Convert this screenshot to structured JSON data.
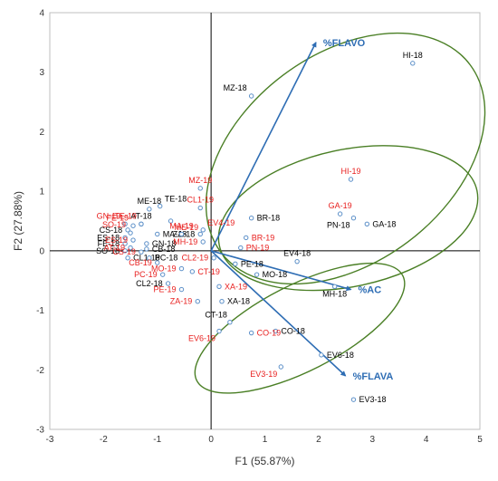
{
  "chart_data": {
    "type": "scatter",
    "xlabel": "F1 (55.87%)",
    "ylabel": "F2 (27.88%)",
    "xlim": [
      -3,
      5
    ],
    "ylim": [
      -3,
      4
    ],
    "xticks": [
      -3,
      -2,
      -1,
      0,
      1,
      2,
      3,
      4,
      5
    ],
    "yticks": [
      -3,
      -2,
      -1,
      0,
      1,
      2,
      3,
      4
    ],
    "grid": false,
    "colors": {
      "year18": "#000000",
      "year19": "#e8201f",
      "marker": "#5b8fc8",
      "vector": "#2e6db4",
      "ellipse": "#4a7f25",
      "frame": "#bfbfbf"
    },
    "points": [
      {
        "label": "HI-18",
        "x": 3.75,
        "y": 3.15,
        "group": "18",
        "labelPos": "above"
      },
      {
        "label": "MZ-18",
        "x": 0.75,
        "y": 2.6,
        "group": "18",
        "labelPos": "left-above"
      },
      {
        "label": "TE-18",
        "x": -0.95,
        "y": 0.75,
        "group": "18",
        "labelPos": "right-above"
      },
      {
        "label": "ME-18",
        "x": -1.15,
        "y": 0.7,
        "group": "18",
        "labelPos": "above-center"
      },
      {
        "label": "AT-18",
        "x": -1.3,
        "y": 0.45,
        "group": "18",
        "labelPos": "above-center"
      },
      {
        "label": "CS-18",
        "x": -1.55,
        "y": 0.35,
        "group": "18",
        "labelPos": "left"
      },
      {
        "label": "ES-18",
        "x": -1.6,
        "y": 0.22,
        "group": "18",
        "labelPos": "left"
      },
      {
        "label": "FE-18",
        "x": -1.6,
        "y": 0.12,
        "group": "18",
        "labelPos": "left"
      },
      {
        "label": "SO-18",
        "x": -1.6,
        "y": 0.0,
        "group": "18",
        "labelPos": "left"
      },
      {
        "label": "MA-18",
        "x": -1.0,
        "y": 0.28,
        "group": "18",
        "labelPos": "right"
      },
      {
        "label": "GN-18",
        "x": -1.2,
        "y": 0.12,
        "group": "18",
        "labelPos": "right"
      },
      {
        "label": "CB-18",
        "x": -1.2,
        "y": 0.03,
        "group": "18",
        "labelPos": "right"
      },
      {
        "label": "CL1-18",
        "x": -1.55,
        "y": -0.12,
        "group": "18",
        "labelPos": "right"
      },
      {
        "label": "PC-18",
        "x": -1.15,
        "y": -0.12,
        "group": "18",
        "labelPos": "right"
      },
      {
        "label": "ZA-18",
        "x": -0.2,
        "y": 0.28,
        "group": "18",
        "labelPos": "left"
      },
      {
        "label": "BR-18",
        "x": 0.75,
        "y": 0.55,
        "group": "18",
        "labelPos": "right"
      },
      {
        "label": "PE-18",
        "x": 0.45,
        "y": -0.22,
        "group": "18",
        "labelPos": "right"
      },
      {
        "label": "MO-18",
        "x": 0.85,
        "y": -0.4,
        "group": "18",
        "labelPos": "right"
      },
      {
        "label": "EV4-18",
        "x": 1.6,
        "y": -0.18,
        "group": "18",
        "labelPos": "above"
      },
      {
        "label": "CL2-18",
        "x": -0.8,
        "y": -0.55,
        "group": "18",
        "labelPos": "left"
      },
      {
        "label": "XA-18",
        "x": 0.2,
        "y": -0.85,
        "group": "18",
        "labelPos": "right"
      },
      {
        "label": "CT-18",
        "x": 0.35,
        "y": -1.2,
        "group": "18",
        "labelPos": "above-left"
      },
      {
        "label": "CO-18",
        "x": 1.2,
        "y": -1.35,
        "group": "18",
        "labelPos": "right"
      },
      {
        "label": "EV6-18",
        "x": 2.05,
        "y": -1.75,
        "group": "18",
        "labelPos": "right"
      },
      {
        "label": "MH-18",
        "x": 2.3,
        "y": -0.6,
        "group": "18",
        "labelPos": "below"
      },
      {
        "label": "GA-18",
        "x": 2.9,
        "y": 0.45,
        "group": "18",
        "labelPos": "right"
      },
      {
        "label": "PN-18",
        "x": 2.65,
        "y": 0.55,
        "group": "18",
        "labelPos": "below-left"
      },
      {
        "label": "EV3-18",
        "x": 2.65,
        "y": -2.5,
        "group": "18",
        "labelPos": "right"
      },
      {
        "label": "HI-19",
        "x": 2.6,
        "y": 1.2,
        "group": "19",
        "labelPos": "above"
      },
      {
        "label": "GA-19",
        "x": 2.4,
        "y": 0.62,
        "group": "19",
        "labelPos": "above"
      },
      {
        "label": "MZ-19",
        "x": -0.2,
        "y": 1.05,
        "group": "19",
        "labelPos": "above"
      },
      {
        "label": "CL1-19",
        "x": -0.2,
        "y": 0.72,
        "group": "19",
        "labelPos": "above"
      },
      {
        "label": "GN-19",
        "x": -1.6,
        "y": 0.45,
        "group": "19",
        "labelPos": "left-above"
      },
      {
        "label": "FE-19",
        "x": -1.45,
        "y": 0.42,
        "group": "19",
        "labelPos": "left-above"
      },
      {
        "label": "TE-19",
        "x": -1.3,
        "y": 0.45,
        "group": "19",
        "labelPos": "left-above"
      },
      {
        "label": "SO-19",
        "x": -1.5,
        "y": 0.3,
        "group": "19",
        "labelPos": "left-above"
      },
      {
        "label": "ES-19",
        "x": -1.45,
        "y": 0.18,
        "group": "19",
        "labelPos": "left"
      },
      {
        "label": "AT-19",
        "x": -1.5,
        "y": 0.05,
        "group": "19",
        "labelPos": "left"
      },
      {
        "label": "ME-19",
        "x": -0.75,
        "y": 0.5,
        "group": "19",
        "labelPos": "below-right"
      },
      {
        "label": "CS-19",
        "x": -1.3,
        "y": -0.02,
        "group": "19",
        "labelPos": "left"
      },
      {
        "label": "MA-19",
        "x": -0.55,
        "y": 0.28,
        "group": "19",
        "labelPos": "above"
      },
      {
        "label": "EV4-19",
        "x": -0.15,
        "y": 0.35,
        "group": "19",
        "labelPos": "right-above"
      },
      {
        "label": "MH-19",
        "x": -0.15,
        "y": 0.15,
        "group": "19",
        "labelPos": "left"
      },
      {
        "label": "BR-19",
        "x": 0.65,
        "y": 0.22,
        "group": "19",
        "labelPos": "right"
      },
      {
        "label": "PN-19",
        "x": 0.55,
        "y": 0.05,
        "group": "19",
        "labelPos": "right"
      },
      {
        "label": "CL2-19",
        "x": 0.05,
        "y": -0.12,
        "group": "19",
        "labelPos": "left"
      },
      {
        "label": "CB-19",
        "x": -1.0,
        "y": -0.2,
        "group": "19",
        "labelPos": "left"
      },
      {
        "label": "MO-19",
        "x": -0.55,
        "y": -0.3,
        "group": "19",
        "labelPos": "left"
      },
      {
        "label": "CT-19",
        "x": -0.35,
        "y": -0.35,
        "group": "19",
        "labelPos": "right"
      },
      {
        "label": "PC-19",
        "x": -0.9,
        "y": -0.4,
        "group": "19",
        "labelPos": "left"
      },
      {
        "label": "PE-19",
        "x": -0.55,
        "y": -0.65,
        "group": "19",
        "labelPos": "left"
      },
      {
        "label": "XA-19",
        "x": 0.15,
        "y": -0.6,
        "group": "19",
        "labelPos": "right"
      },
      {
        "label": "ZA-19",
        "x": -0.25,
        "y": -0.85,
        "group": "19",
        "labelPos": "left"
      },
      {
        "label": "EV6-19",
        "x": 0.15,
        "y": -1.35,
        "group": "19",
        "labelPos": "below-left"
      },
      {
        "label": "CO-19",
        "x": 0.75,
        "y": -1.38,
        "group": "19",
        "labelPos": "right"
      },
      {
        "label": "EV3-19",
        "x": 1.3,
        "y": -1.95,
        "group": "19",
        "labelPos": "below-left"
      }
    ],
    "vectors": [
      {
        "label": "%FLAVO",
        "x": 1.95,
        "y": 3.5,
        "labelPos": "right"
      },
      {
        "label": "%AC",
        "x": 2.6,
        "y": -0.65,
        "labelPos": "right"
      },
      {
        "label": "%FLAVA",
        "x": 2.5,
        "y": -2.1,
        "labelPos": "right"
      }
    ],
    "ellipses": [
      {
        "cx": 2.5,
        "cy": 1.55,
        "rx": 2.9,
        "ry": 1.75,
        "angle": 37
      },
      {
        "cx": 2.55,
        "cy": 0.55,
        "rx": 2.45,
        "ry": 1.15,
        "angle": 12
      },
      {
        "cx": 1.65,
        "cy": -1.3,
        "rx": 2.15,
        "ry": 0.72,
        "angle": 27
      }
    ]
  }
}
